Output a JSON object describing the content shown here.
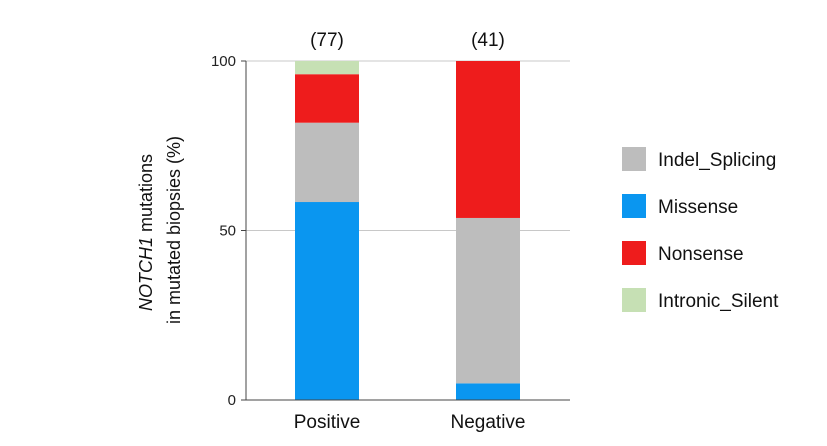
{
  "chart_data": {
    "type": "bar",
    "stacked": true,
    "categories": [
      "Positive",
      "Negative"
    ],
    "counts": [
      "(77)",
      "(41)"
    ],
    "ylabel_italic": "NOTCH1",
    "ylabel_line1_rest": " mutations",
    "ylabel_line2": "in mutated biopsies (%)",
    "ylim": [
      0,
      100
    ],
    "yticks": [
      0,
      50,
      100
    ],
    "grid": true,
    "legend_position": "right",
    "series": [
      {
        "name": "Missense",
        "color": "#0a96f0",
        "values": [
          58.4,
          4.9
        ]
      },
      {
        "name": "Indel_Splicing",
        "color": "#bdbdbd",
        "values": [
          23.4,
          48.8
        ]
      },
      {
        "name": "Nonsense",
        "color": "#ee1c1c",
        "values": [
          14.3,
          46.3
        ]
      },
      {
        "name": "Intronic_Silent",
        "color": "#c6e0b4",
        "values": [
          3.9,
          0
        ]
      }
    ],
    "legend_order": [
      "Indel_Splicing",
      "Missense",
      "Nonsense",
      "Intronic_Silent"
    ]
  }
}
